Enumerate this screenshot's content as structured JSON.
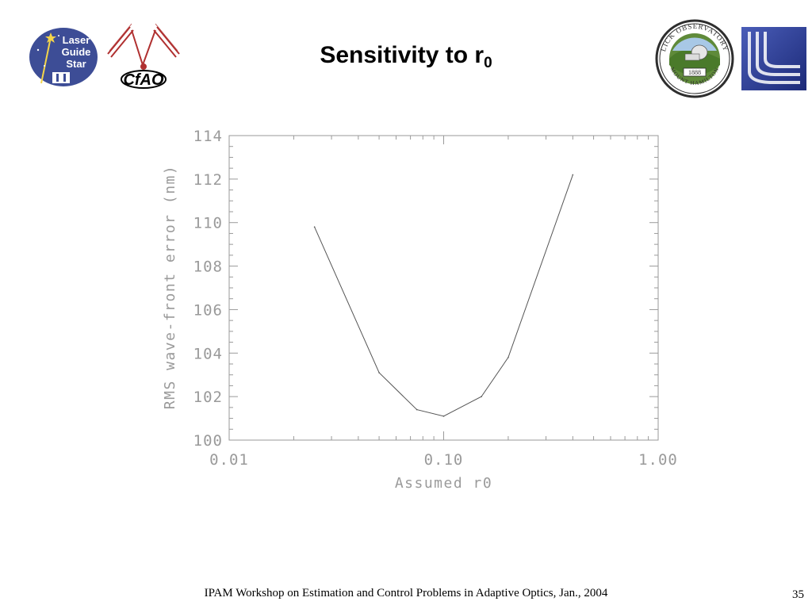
{
  "title": {
    "main": "Sensitivity to r",
    "sub": "0"
  },
  "logos": {
    "left_1": {
      "icon": "laser-guide-star-logo",
      "lines": [
        "Laser",
        "Guide",
        "Star"
      ]
    },
    "left_2": {
      "icon": "cfao-logo",
      "text": "CfAO"
    },
    "right_1": {
      "icon": "lick-observatory-seal",
      "top_text": "LICK OBSERVATORY",
      "bottom_text": "MOUNT HAMILTON",
      "year": "1888"
    },
    "right_2": {
      "icon": "university-of-california-logo"
    }
  },
  "chart_data": {
    "type": "line",
    "xlabel": "Assumed r0",
    "ylabel": "RMS wave-front error (nm)",
    "xscale": "log",
    "xlim": [
      0.01,
      1.0
    ],
    "ylim": [
      100,
      114
    ],
    "xticks": [
      0.01,
      0.1,
      1.0
    ],
    "xtick_labels": [
      "0.01",
      "0.10",
      "1.00"
    ],
    "yticks": [
      100,
      102,
      104,
      106,
      108,
      110,
      112,
      114
    ],
    "ytick_labels": [
      "100",
      "102",
      "104",
      "106",
      "108",
      "110",
      "112",
      "114"
    ],
    "grid": false,
    "line_color": "#555555",
    "axis_color": "#9a9a9a",
    "series": [
      {
        "x": [
          0.025,
          0.05,
          0.075,
          0.1,
          0.15,
          0.2,
          0.4
        ],
        "y": [
          109.8,
          103.1,
          101.4,
          101.1,
          102.0,
          103.8,
          112.2
        ]
      }
    ]
  },
  "footer": {
    "text": "IPAM Workshop on Estimation and Control Problems in Adaptive Optics, Jan., 2004",
    "page_number": "35"
  }
}
